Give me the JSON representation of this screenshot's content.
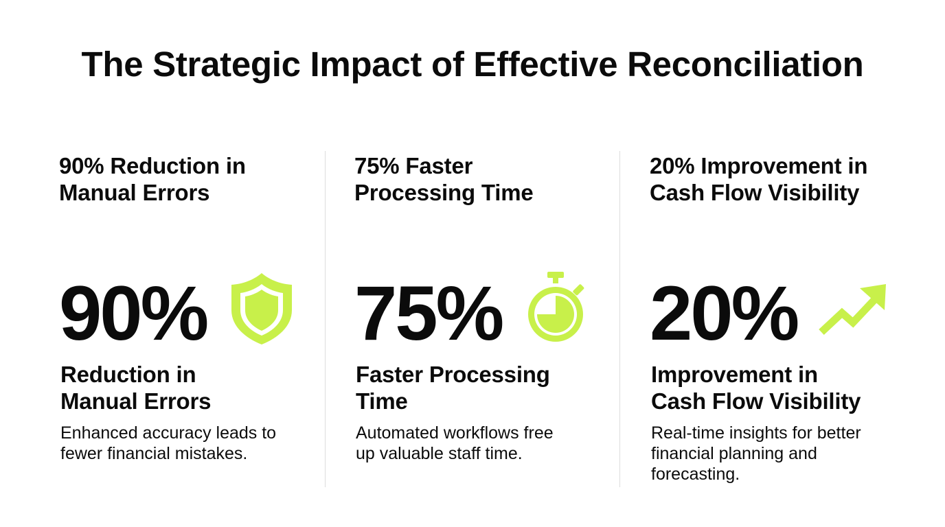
{
  "title": "The Strategic Impact of Effective Reconciliation",
  "accent_color": "#c8f04a",
  "stats": [
    {
      "heading": "90% Reduction in\nManual Errors",
      "value": "90%",
      "icon": "shield-icon",
      "subheading": "Reduction in\nManual Errors",
      "description": "Enhanced accuracy leads to\nfewer financial mistakes."
    },
    {
      "heading": "75% Faster\nProcessing Time",
      "value": "75%",
      "icon": "stopwatch-icon",
      "subheading": "Faster Processing\nTime",
      "description": "Automated workflows free\nup valuable staff time."
    },
    {
      "heading": "20% Improvement in\nCash Flow Visibility",
      "value": "20%",
      "icon": "trending-up-arrow-icon",
      "subheading": "Improvement in\nCash Flow Visibility",
      "description": "Real-time insights for better\nfinancial planning and\nforecasting."
    }
  ]
}
